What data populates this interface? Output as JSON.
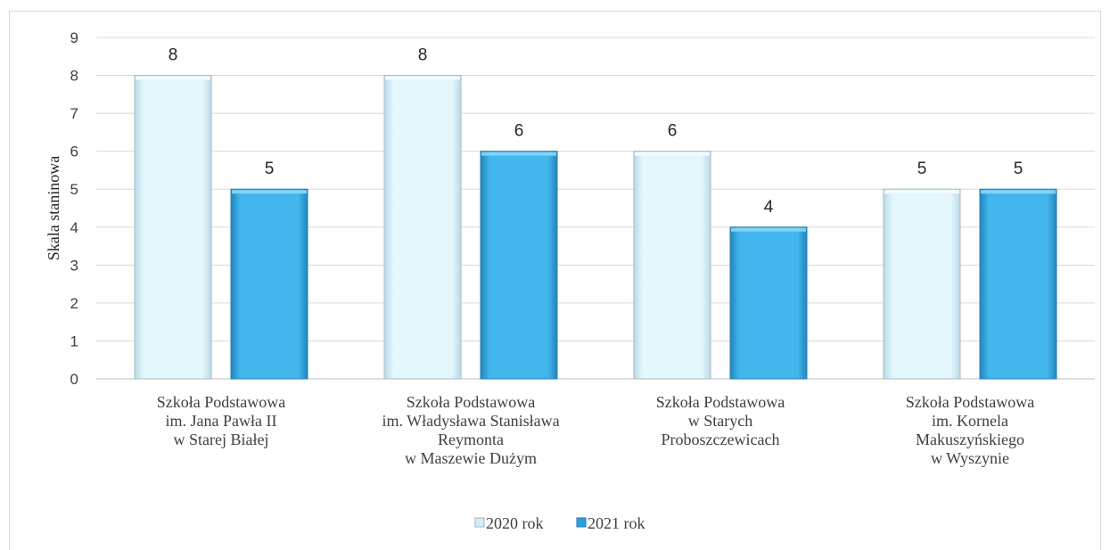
{
  "chart_data": {
    "type": "bar",
    "title": "",
    "ylabel": "Skala staninowa",
    "xlabel": "",
    "ylim": [
      0,
      9
    ],
    "yticks": [
      0,
      1,
      2,
      3,
      4,
      5,
      6,
      7,
      8,
      9
    ],
    "grid": true,
    "legend_position": "bottom",
    "categories": [
      [
        "Szkoła Podstawowa",
        "im. Jana Pawła II",
        "w Starej Białej"
      ],
      [
        "Szkoła Podstawowa",
        "im. Władysława Stanisława",
        "Reymonta",
        "w Maszewie Dużym"
      ],
      [
        "Szkoła Podstawowa",
        "w Starych",
        "Proboszczewicach"
      ],
      [
        "Szkoła Podstawowa",
        "im. Kornela",
        "Makuszyńskiego",
        "w Wyszynie"
      ]
    ],
    "series": [
      {
        "name": "2020 rok",
        "values": [
          8,
          8,
          6,
          5
        ],
        "color": "#daf3fb"
      },
      {
        "name": "2021 rok",
        "values": [
          5,
          6,
          4,
          5
        ],
        "color": "#3aaee6"
      }
    ]
  }
}
